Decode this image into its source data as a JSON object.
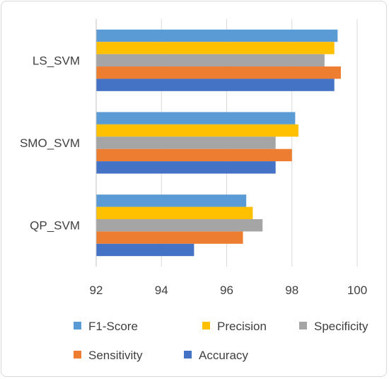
{
  "chart_data": {
    "type": "bar",
    "orientation": "horizontal",
    "categories": [
      "LS_SVM",
      "SMO_SVM",
      "QP_SVM"
    ],
    "series": [
      {
        "name": "F1-Score",
        "color": "#5B9BD5",
        "values": [
          99.4,
          98.1,
          96.6
        ]
      },
      {
        "name": "Precision",
        "color": "#FFC000",
        "values": [
          99.3,
          98.2,
          96.8
        ]
      },
      {
        "name": "Specificity",
        "color": "#A5A5A5",
        "values": [
          99.0,
          97.5,
          97.1
        ]
      },
      {
        "name": "Sensitivity",
        "color": "#ED7D31",
        "values": [
          99.5,
          98.0,
          96.5
        ]
      },
      {
        "name": "Accuracy",
        "color": "#4472C4",
        "values": [
          99.3,
          97.5,
          95.0
        ]
      }
    ],
    "xlim": [
      92,
      100
    ],
    "xticks": [
      "92",
      "94",
      "96",
      "98",
      "100"
    ],
    "grid": true,
    "legend_position": "bottom",
    "title": "",
    "xlabel": "",
    "ylabel": ""
  }
}
